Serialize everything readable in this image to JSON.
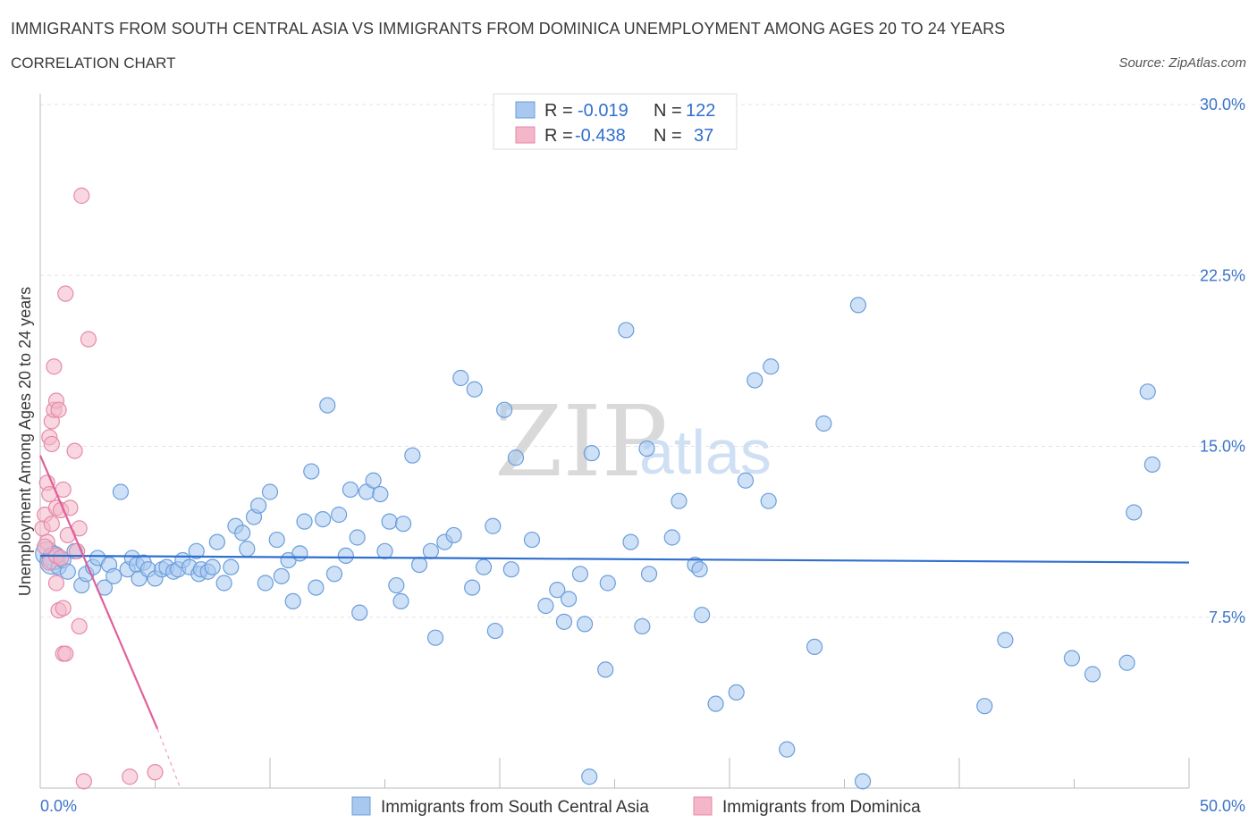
{
  "header": {
    "title": "IMMIGRANTS FROM SOUTH CENTRAL ASIA VS IMMIGRANTS FROM DOMINICA UNEMPLOYMENT AMONG AGES 20 TO 24 YEARS",
    "subtitle": "CORRELATION CHART",
    "source": "Source: ZipAtlas.com"
  },
  "watermark": {
    "zip": "ZIP",
    "atlas": "atlas"
  },
  "legend": {
    "r_label": "R =",
    "n_label": "N =",
    "series": [
      {
        "r": "-0.019",
        "n": "122",
        "color": "#a8c8f0"
      },
      {
        "r": "-0.438",
        "n": "37",
        "color": "#f4b6c8"
      }
    ]
  },
  "chart_data": {
    "type": "scatter",
    "title": "IMMIGRANTS FROM SOUTH CENTRAL ASIA VS IMMIGRANTS FROM DOMINICA UNEMPLOYMENT AMONG AGES 20 TO 24 YEARS",
    "ylabel": "Unemployment Among Ages 20 to 24 years",
    "xlim": [
      0,
      50
    ],
    "ylim": [
      0,
      30
    ],
    "x_tick_labels": [
      "0.0%",
      "50.0%"
    ],
    "y_ticks": [
      7.5,
      15.0,
      22.5,
      30.0
    ],
    "y_tick_labels": [
      "7.5%",
      "15.0%",
      "22.5%",
      "30.0%"
    ],
    "grid": true,
    "legend_position": "top-center",
    "series": [
      {
        "name": "Immigrants from South Central Asia",
        "color": "#a8c8f0",
        "stroke": "#6a9edb",
        "trend": {
          "x": [
            0,
            50
          ],
          "y": [
            10.2,
            9.9
          ],
          "color": "#2f6fcf"
        },
        "points": [
          [
            0.3,
            10.3
          ],
          [
            0.5,
            9.9
          ],
          [
            0.6,
            10.1
          ],
          [
            0.8,
            9.7
          ],
          [
            1.0,
            10.0
          ],
          [
            1.2,
            9.5
          ],
          [
            1.5,
            10.4
          ],
          [
            1.8,
            8.9
          ],
          [
            2.0,
            9.4
          ],
          [
            2.3,
            9.7
          ],
          [
            2.5,
            10.1
          ],
          [
            2.8,
            8.8
          ],
          [
            3.0,
            9.8
          ],
          [
            3.2,
            9.3
          ],
          [
            3.5,
            13.0
          ],
          [
            3.8,
            9.6
          ],
          [
            4.0,
            10.1
          ],
          [
            4.2,
            9.8
          ],
          [
            4.3,
            9.2
          ],
          [
            4.5,
            9.9
          ],
          [
            4.7,
            9.6
          ],
          [
            5.0,
            9.2
          ],
          [
            5.3,
            9.6
          ],
          [
            5.5,
            9.7
          ],
          [
            5.8,
            9.5
          ],
          [
            6.0,
            9.6
          ],
          [
            6.2,
            10.0
          ],
          [
            6.5,
            9.7
          ],
          [
            6.8,
            10.4
          ],
          [
            6.9,
            9.4
          ],
          [
            7.0,
            9.6
          ],
          [
            7.3,
            9.5
          ],
          [
            7.5,
            9.7
          ],
          [
            7.7,
            10.8
          ],
          [
            8.0,
            9.0
          ],
          [
            8.3,
            9.7
          ],
          [
            8.5,
            11.5
          ],
          [
            8.8,
            11.2
          ],
          [
            9.0,
            10.5
          ],
          [
            9.3,
            11.9
          ],
          [
            9.5,
            12.4
          ],
          [
            9.8,
            9.0
          ],
          [
            10.0,
            13.0
          ],
          [
            10.3,
            10.9
          ],
          [
            10.5,
            9.3
          ],
          [
            10.8,
            10.0
          ],
          [
            11.0,
            8.2
          ],
          [
            11.3,
            10.3
          ],
          [
            11.5,
            11.7
          ],
          [
            11.8,
            13.9
          ],
          [
            12.0,
            8.8
          ],
          [
            12.3,
            11.8
          ],
          [
            12.5,
            16.8
          ],
          [
            12.8,
            9.4
          ],
          [
            13.0,
            12.0
          ],
          [
            13.3,
            10.2
          ],
          [
            13.5,
            13.1
          ],
          [
            13.8,
            11.0
          ],
          [
            13.9,
            7.7
          ],
          [
            14.2,
            13.0
          ],
          [
            14.5,
            13.5
          ],
          [
            14.8,
            12.9
          ],
          [
            15.0,
            10.4
          ],
          [
            15.2,
            11.7
          ],
          [
            15.5,
            8.9
          ],
          [
            15.8,
            11.6
          ],
          [
            15.7,
            8.2
          ],
          [
            16.2,
            14.6
          ],
          [
            16.5,
            9.8
          ],
          [
            17.0,
            10.4
          ],
          [
            17.2,
            6.6
          ],
          [
            17.6,
            10.8
          ],
          [
            18.0,
            11.1
          ],
          [
            18.3,
            18.0
          ],
          [
            18.8,
            8.8
          ],
          [
            18.9,
            17.5
          ],
          [
            19.3,
            9.7
          ],
          [
            19.7,
            11.5
          ],
          [
            19.8,
            6.9
          ],
          [
            20.2,
            16.6
          ],
          [
            20.5,
            9.6
          ],
          [
            20.7,
            14.5
          ],
          [
            21.4,
            10.9
          ],
          [
            22.0,
            8.0
          ],
          [
            22.5,
            8.7
          ],
          [
            22.8,
            7.3
          ],
          [
            23.0,
            8.3
          ],
          [
            23.5,
            9.4
          ],
          [
            23.7,
            7.2
          ],
          [
            23.9,
            0.5
          ],
          [
            24.6,
            5.2
          ],
          [
            24.7,
            9.0
          ],
          [
            24.0,
            14.7
          ],
          [
            25.5,
            20.1
          ],
          [
            25.7,
            10.8
          ],
          [
            26.2,
            7.1
          ],
          [
            26.4,
            14.9
          ],
          [
            26.5,
            9.4
          ],
          [
            27.5,
            11.0
          ],
          [
            27.8,
            12.6
          ],
          [
            28.5,
            9.8
          ],
          [
            28.7,
            9.6
          ],
          [
            28.8,
            7.6
          ],
          [
            29.4,
            3.7
          ],
          [
            30.3,
            4.2
          ],
          [
            30.7,
            13.5
          ],
          [
            31.1,
            17.9
          ],
          [
            31.8,
            18.5
          ],
          [
            31.7,
            12.6
          ],
          [
            32.5,
            1.7
          ],
          [
            33.7,
            6.2
          ],
          [
            34.1,
            16.0
          ],
          [
            35.6,
            21.2
          ],
          [
            35.8,
            0.3
          ],
          [
            42.0,
            6.5
          ],
          [
            41.1,
            3.6
          ],
          [
            44.9,
            5.7
          ],
          [
            45.8,
            5.0
          ],
          [
            47.3,
            5.5
          ],
          [
            47.6,
            12.1
          ],
          [
            48.4,
            14.2
          ],
          [
            48.2,
            17.4
          ]
        ]
      },
      {
        "name": "Immigrants from Dominica",
        "color": "#f4b6c8",
        "stroke": "#e58aa8",
        "trend": {
          "x": [
            0,
            5.1
          ],
          "y": [
            14.6,
            2.6
          ],
          "dash_x": [
            5.1,
            6.1
          ],
          "dash_y": [
            2.6,
            0.0
          ],
          "color": "#e0609a"
        },
        "points": [
          [
            0.1,
            11.4
          ],
          [
            0.2,
            12.0
          ],
          [
            0.3,
            13.4
          ],
          [
            0.3,
            10.8
          ],
          [
            0.4,
            15.4
          ],
          [
            0.4,
            12.9
          ],
          [
            0.4,
            9.9
          ],
          [
            0.5,
            11.6
          ],
          [
            0.5,
            16.1
          ],
          [
            0.5,
            15.1
          ],
          [
            0.6,
            18.5
          ],
          [
            0.6,
            16.6
          ],
          [
            0.7,
            17.0
          ],
          [
            0.7,
            12.3
          ],
          [
            0.7,
            10.2
          ],
          [
            0.7,
            9.0
          ],
          [
            0.8,
            16.6
          ],
          [
            0.8,
            7.8
          ],
          [
            0.9,
            12.2
          ],
          [
            0.9,
            10.1
          ],
          [
            1.0,
            13.1
          ],
          [
            1.0,
            5.9
          ],
          [
            1.0,
            7.9
          ],
          [
            1.1,
            21.7
          ],
          [
            1.1,
            5.9
          ],
          [
            1.2,
            11.1
          ],
          [
            1.3,
            12.3
          ],
          [
            1.5,
            14.8
          ],
          [
            1.6,
            10.4
          ],
          [
            1.7,
            11.4
          ],
          [
            1.7,
            7.1
          ],
          [
            1.8,
            26.0
          ],
          [
            1.9,
            0.3
          ],
          [
            2.1,
            19.7
          ],
          [
            3.9,
            0.5
          ],
          [
            5.0,
            0.7
          ],
          [
            0.2,
            10.6
          ]
        ]
      }
    ]
  },
  "bottom_legend": {
    "items": [
      {
        "label": "Immigrants from South Central Asia",
        "color": "#a8c8f0"
      },
      {
        "label": "Immigrants from Dominica",
        "color": "#f4b6c8"
      }
    ]
  }
}
